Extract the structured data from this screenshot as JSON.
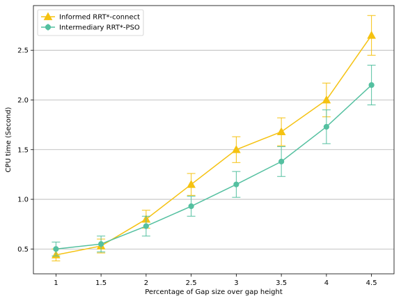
{
  "chart_data": {
    "type": "line",
    "xlabel": "Percentage of Gap size over gap height",
    "ylabel": "CPU time (Second)",
    "x": [
      1,
      1.5,
      2,
      2.5,
      3,
      3.5,
      4,
      4.5
    ],
    "xticks": [
      "1",
      "1.5",
      "2",
      "2.5",
      "3",
      "3.5",
      "4",
      "4.5"
    ],
    "yticks": [
      "0.5",
      "1.0",
      "1.5",
      "2.0",
      "2.5"
    ],
    "xlim": [
      0.75,
      4.75
    ],
    "ylim": [
      0.25,
      2.95
    ],
    "grid": "horizontal",
    "legend_position": "top-left",
    "series": [
      {
        "name": "Informed RRT*-connect",
        "color": "#f5c211",
        "marker": "triangle",
        "values": [
          0.44,
          0.53,
          0.8,
          1.15,
          1.5,
          1.68,
          2.0,
          2.65
        ],
        "errors": [
          0.06,
          0.07,
          0.09,
          0.11,
          0.13,
          0.14,
          0.17,
          0.2
        ]
      },
      {
        "name": "Intermediary RRT*-PSO",
        "color": "#54c0a0",
        "marker": "circle",
        "values": [
          0.5,
          0.55,
          0.73,
          0.93,
          1.15,
          1.38,
          1.73,
          2.15
        ],
        "errors": [
          0.07,
          0.08,
          0.1,
          0.1,
          0.13,
          0.15,
          0.17,
          0.2
        ]
      }
    ]
  }
}
